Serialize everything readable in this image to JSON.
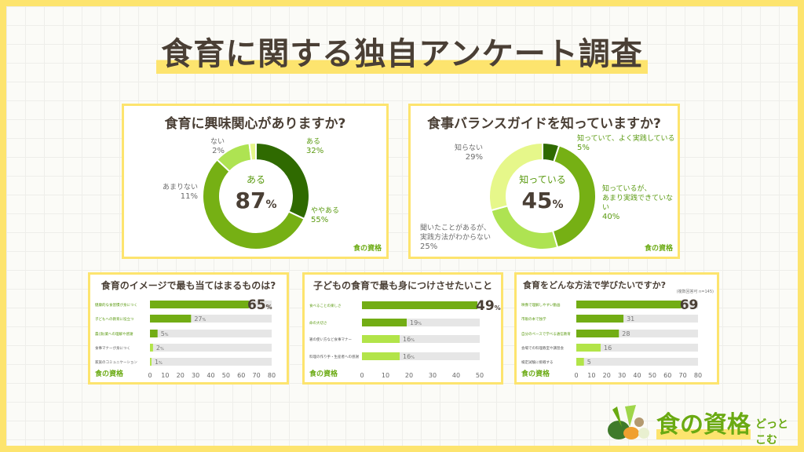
{
  "title": "食育に関する独自アンケート調査",
  "logo": {
    "main": "食の資格",
    "sub": "どっとこむ"
  },
  "colors": {
    "border": "#fde46e",
    "dark_green": "#2f6a00",
    "green": "#76b014",
    "light_green": "#aee352",
    "pale_green": "#e6f78a",
    "track": "#e6e6e6"
  },
  "chart_data": [
    {
      "type": "pie",
      "title": "食育に興味関心がありますか?",
      "center_label": "ある",
      "center_value": "87",
      "center_unit": "%",
      "slices": [
        {
          "label": "ある",
          "value": 32,
          "display": "32%"
        },
        {
          "label": "ややある",
          "value": 55,
          "display": "55%"
        },
        {
          "label": "あまりない",
          "value": 11,
          "display": "11%"
        },
        {
          "label": "ない",
          "value": 2,
          "display": "2%"
        }
      ]
    },
    {
      "type": "pie",
      "title": "食事バランスガイドを知っていますか?",
      "center_label": "知っている",
      "center_value": "45",
      "center_unit": "%",
      "slices": [
        {
          "label": "知っていて、よく実践している",
          "value": 5,
          "display": "5%"
        },
        {
          "label": "知っているが、\nあまり実践できていない",
          "value": 40,
          "display": "40%"
        },
        {
          "label": "聞いたことがあるが、\n実践方法がわからない",
          "value": 25,
          "display": "25%"
        },
        {
          "label": "知らない",
          "value": 29,
          "display": "29%"
        }
      ]
    },
    {
      "type": "bar",
      "title": "食育のイメージで最も当てはまるものは?",
      "xlim": [
        0,
        80
      ],
      "ticks": [
        "0",
        "10",
        "20",
        "30",
        "40",
        "50",
        "60",
        "70",
        "80"
      ],
      "unit": "%",
      "categories": [
        "健康的な食習慣が身につく",
        "子どもへの教育に役立つ",
        "農(漁)業への理解や感謝",
        "食事マナーが身につく",
        "家族のコミュニケーション"
      ],
      "values": [
        65,
        27,
        5,
        2,
        1
      ]
    },
    {
      "type": "bar",
      "title": "子どもの食育で最も身につけさせたいこと",
      "xlim": [
        0,
        50
      ],
      "ticks": [
        "0",
        "10",
        "20",
        "30",
        "40",
        "50"
      ],
      "unit": "%",
      "categories": [
        "食べることの楽しさ",
        "命の大切さ",
        "箸の使い方など食事マナー",
        "料理の作り手・生産者への感謝"
      ],
      "values": [
        49,
        19,
        16,
        16
      ]
    },
    {
      "type": "bar",
      "title": "食育をどんな方法で学びたいですか?",
      "note": "(複数回答可 n=145)",
      "xlim": [
        0,
        80
      ],
      "ticks": [
        "0",
        "10",
        "20",
        "30",
        "40",
        "50",
        "60",
        "70",
        "80"
      ],
      "unit": "",
      "categories": [
        "映像で理解しやすい動画",
        "市販の本で独学",
        "自分のペースで学べる通信教育",
        "会場での料理教室や講習会",
        "検定試験に挑戦する"
      ],
      "values": [
        69,
        31,
        28,
        16,
        5
      ]
    }
  ]
}
